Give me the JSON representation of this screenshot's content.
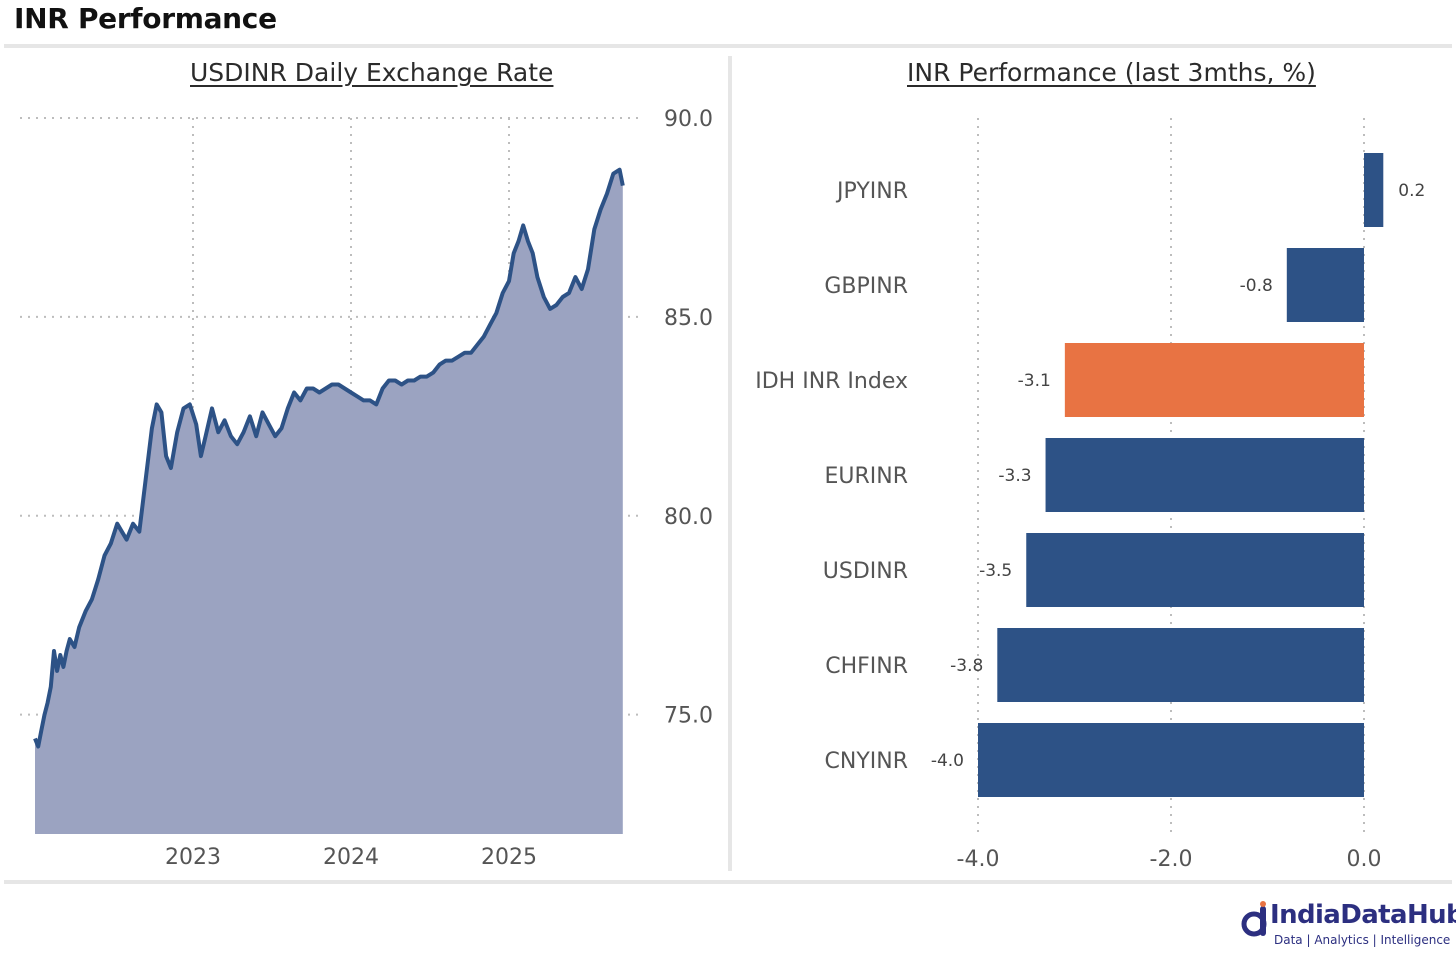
{
  "page_title": "INR Performance",
  "colors": {
    "line": "#2d5286",
    "area": "#9ba3c1",
    "bar": "#2d5286",
    "highlight": "#e87343",
    "grid": "#bdbdbd"
  },
  "chart_data": [
    {
      "type": "area",
      "title": "USDINR Daily Exchange Rate",
      "xlabel": "",
      "ylabel": "",
      "x_tick_labels": [
        "2023",
        "2024",
        "2025"
      ],
      "y_tick_labels": [
        "90.0",
        "85.0",
        "80.0",
        "75.0"
      ],
      "ylim": [
        72.0,
        90.0
      ],
      "y_ticks": [
        90.0,
        85.0,
        80.0,
        75.0
      ],
      "x_ticks": [
        2023.0,
        2024.0,
        2025.0
      ],
      "xlim": [
        2021.9,
        2025.75
      ],
      "series": [
        {
          "name": "USDINR",
          "points": [
            [
              2022.0,
              74.4
            ],
            [
              2022.02,
              74.2
            ],
            [
              2022.04,
              74.6
            ],
            [
              2022.06,
              75.0
            ],
            [
              2022.08,
              75.3
            ],
            [
              2022.1,
              75.7
            ],
            [
              2022.12,
              76.6
            ],
            [
              2022.14,
              76.1
            ],
            [
              2022.16,
              76.5
            ],
            [
              2022.18,
              76.2
            ],
            [
              2022.2,
              76.6
            ],
            [
              2022.22,
              76.9
            ],
            [
              2022.25,
              76.7
            ],
            [
              2022.28,
              77.2
            ],
            [
              2022.32,
              77.6
            ],
            [
              2022.36,
              77.9
            ],
            [
              2022.4,
              78.4
            ],
            [
              2022.44,
              79.0
            ],
            [
              2022.48,
              79.3
            ],
            [
              2022.52,
              79.8
            ],
            [
              2022.55,
              79.6
            ],
            [
              2022.58,
              79.4
            ],
            [
              2022.62,
              79.8
            ],
            [
              2022.66,
              79.6
            ],
            [
              2022.7,
              80.9
            ],
            [
              2022.74,
              82.2
            ],
            [
              2022.77,
              82.8
            ],
            [
              2022.8,
              82.6
            ],
            [
              2022.83,
              81.5
            ],
            [
              2022.86,
              81.2
            ],
            [
              2022.9,
              82.1
            ],
            [
              2022.94,
              82.7
            ],
            [
              2022.98,
              82.8
            ],
            [
              2023.02,
              82.3
            ],
            [
              2023.05,
              81.5
            ],
            [
              2023.08,
              82.0
            ],
            [
              2023.12,
              82.7
            ],
            [
              2023.16,
              82.1
            ],
            [
              2023.2,
              82.4
            ],
            [
              2023.24,
              82.0
            ],
            [
              2023.28,
              81.8
            ],
            [
              2023.32,
              82.1
            ],
            [
              2023.36,
              82.5
            ],
            [
              2023.4,
              82.0
            ],
            [
              2023.44,
              82.6
            ],
            [
              2023.48,
              82.3
            ],
            [
              2023.52,
              82.0
            ],
            [
              2023.56,
              82.2
            ],
            [
              2023.6,
              82.7
            ],
            [
              2023.64,
              83.1
            ],
            [
              2023.68,
              82.9
            ],
            [
              2023.72,
              83.2
            ],
            [
              2023.76,
              83.2
            ],
            [
              2023.8,
              83.1
            ],
            [
              2023.84,
              83.2
            ],
            [
              2023.88,
              83.3
            ],
            [
              2023.92,
              83.3
            ],
            [
              2023.96,
              83.2
            ],
            [
              2024.0,
              83.1
            ],
            [
              2024.04,
              83.0
            ],
            [
              2024.08,
              82.9
            ],
            [
              2024.12,
              82.9
            ],
            [
              2024.16,
              82.8
            ],
            [
              2024.2,
              83.2
            ],
            [
              2024.24,
              83.4
            ],
            [
              2024.28,
              83.4
            ],
            [
              2024.32,
              83.3
            ],
            [
              2024.36,
              83.4
            ],
            [
              2024.4,
              83.4
            ],
            [
              2024.44,
              83.5
            ],
            [
              2024.48,
              83.5
            ],
            [
              2024.52,
              83.6
            ],
            [
              2024.56,
              83.8
            ],
            [
              2024.6,
              83.9
            ],
            [
              2024.64,
              83.9
            ],
            [
              2024.68,
              84.0
            ],
            [
              2024.72,
              84.1
            ],
            [
              2024.76,
              84.1
            ],
            [
              2024.8,
              84.3
            ],
            [
              2024.84,
              84.5
            ],
            [
              2024.88,
              84.8
            ],
            [
              2024.92,
              85.1
            ],
            [
              2024.96,
              85.6
            ],
            [
              2025.0,
              85.9
            ],
            [
              2025.03,
              86.6
            ],
            [
              2025.06,
              86.9
            ],
            [
              2025.09,
              87.3
            ],
            [
              2025.12,
              86.9
            ],
            [
              2025.15,
              86.6
            ],
            [
              2025.18,
              86.0
            ],
            [
              2025.22,
              85.5
            ],
            [
              2025.26,
              85.2
            ],
            [
              2025.3,
              85.3
            ],
            [
              2025.34,
              85.5
            ],
            [
              2025.38,
              85.6
            ],
            [
              2025.42,
              86.0
            ],
            [
              2025.46,
              85.7
            ],
            [
              2025.5,
              86.2
            ],
            [
              2025.54,
              87.2
            ],
            [
              2025.58,
              87.7
            ],
            [
              2025.62,
              88.1
            ],
            [
              2025.66,
              88.6
            ],
            [
              2025.7,
              88.7
            ],
            [
              2025.72,
              88.3
            ]
          ]
        }
      ]
    },
    {
      "type": "bar",
      "orientation": "horizontal",
      "title": "INR Performance (last 3mths, %)",
      "xlabel": "",
      "ylabel": "",
      "categories": [
        "JPYINR",
        "GBPINR",
        "IDH INR Index",
        "EURINR",
        "USDINR",
        "CHFINR",
        "CNYINR"
      ],
      "values": [
        0.2,
        -0.8,
        -3.1,
        -3.3,
        -3.5,
        -3.8,
        -4.0
      ],
      "value_labels": [
        "0.2",
        "-0.8",
        "-3.1",
        "-3.3",
        "-3.5",
        "-3.8",
        "-4.0"
      ],
      "highlight_category": "IDH INR Index",
      "x_tick_labels": [
        "-4.0",
        "-2.0",
        "0.0"
      ],
      "x_ticks": [
        -4.0,
        -2.0,
        0.0
      ],
      "xlim": [
        -4.0,
        0.2
      ]
    }
  ],
  "logo": {
    "name": "IndiaDataHub",
    "tagline": "Data | Analytics | Intelligence"
  }
}
